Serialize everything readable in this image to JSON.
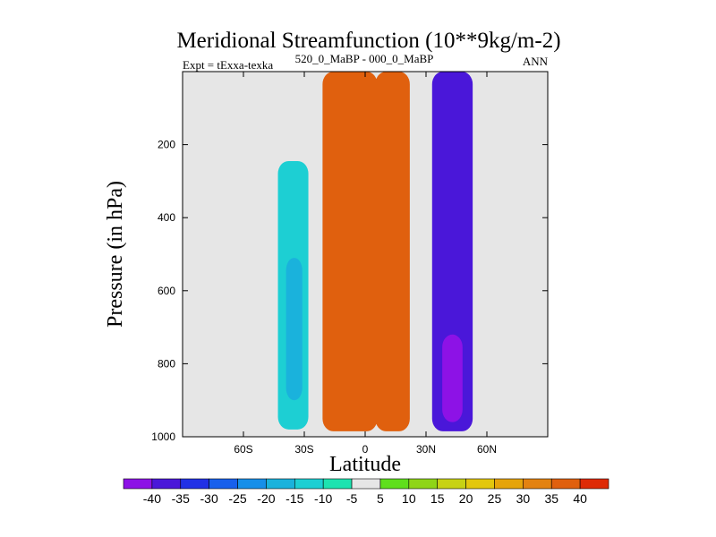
{
  "chart_data": {
    "type": "contour",
    "title": "Meridional Streamfunction (10**9kg/m-2)",
    "left_label": "Expt = tExxa-texka",
    "center_label": "520_0_MaBP - 000_0_MaBP",
    "right_label": "ANN",
    "xlabel": "Latitude",
    "ylabel": "Pressure (in hPa)",
    "xlim": [
      -90,
      90
    ],
    "ylim": [
      1000,
      0
    ],
    "xticks": [
      -60,
      -30,
      0,
      30,
      60
    ],
    "xtick_labels": [
      "60S",
      "30S",
      "0",
      "30N",
      "60N"
    ],
    "yticks": [
      200,
      400,
      600,
      800,
      1000
    ],
    "ytick_labels": [
      "200",
      "400",
      "600",
      "800",
      "1000"
    ],
    "contour_levels": [
      -40,
      -35,
      -30,
      -25,
      -20,
      -15,
      -10,
      -5,
      5,
      10,
      15,
      20,
      25,
      30,
      35,
      40
    ],
    "colorbar_labels": [
      "-40",
      "-35",
      "-30",
      "-25",
      "-20",
      "-15",
      "-10",
      "-5",
      "5",
      "10",
      "15",
      "20",
      "25",
      "30",
      "35",
      "40"
    ],
    "colorbar_colors": [
      "#8d12e6",
      "#4a17d9",
      "#2131e6",
      "#1860ec",
      "#168fe9",
      "#1ab2dc",
      "#1dcfd3",
      "#1ee3b0",
      "#e6e6e6",
      "#5fdf1c",
      "#8fd517",
      "#c7d214",
      "#e3c70d",
      "#e6a40a",
      "#e38210",
      "#e0600e",
      "#de2a06"
    ],
    "background_color": "#e6e6e6",
    "cells": [
      {
        "name": "sh-high-lat-positive",
        "lat": [
          -77,
          -64
        ],
        "p": [
          0,
          965
        ],
        "value": 5
      },
      {
        "name": "sh-midlat-negative",
        "lat": [
          -43,
          -28
        ],
        "p": [
          245,
          980
        ],
        "value": -10
      },
      {
        "name": "sh-midlat-negative-core",
        "lat": [
          -39,
          -31
        ],
        "p": [
          510,
          900
        ],
        "value": -15
      },
      {
        "name": "hadley-cell-south",
        "lat": [
          -21,
          6
        ],
        "p": [
          0,
          985
        ],
        "value": 40
      },
      {
        "name": "hadley-cell-north",
        "lat": [
          5,
          22
        ],
        "p": [
          0,
          985
        ],
        "value": 40
      },
      {
        "name": "nh-ferrel-negative",
        "lat": [
          33,
          53
        ],
        "p": [
          0,
          985
        ],
        "value": -35
      },
      {
        "name": "nh-ferrel-negative-core",
        "lat": [
          38,
          48
        ],
        "p": [
          720,
          960
        ],
        "value": -40
      },
      {
        "name": "nh-polar-positive",
        "lat": [
          75,
          80
        ],
        "p": [
          0,
          130
        ],
        "value": 5
      }
    ]
  }
}
